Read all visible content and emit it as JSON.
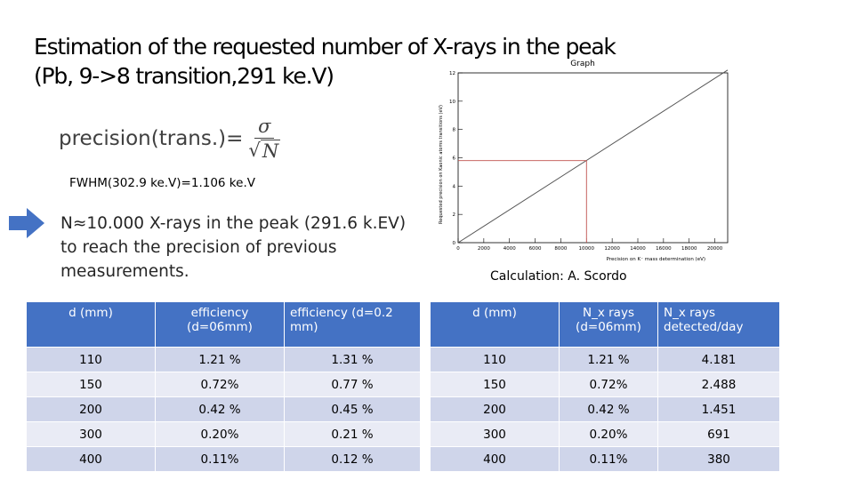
{
  "slide": {
    "title_line1": "Estimation of the requested number of X-rays in the peak",
    "title_line2": "(Pb, 9->8 transition,291 ke.V)",
    "formula": {
      "lhs": "precision(trans.)=",
      "numerator": "σ",
      "radical": "√",
      "denominator": "N"
    },
    "fwhm": "FWHM(302.9 ke.V)=1.106 ke.V",
    "result_line1": "N≈10.000 X-rays in the peak (291.6 k.EV)",
    "result_line2": "to reach the precision of previous",
    "result_line3": "measurements.",
    "credit": "Calculation: A. Scordo"
  },
  "chart_data": {
    "type": "line",
    "title": "Graph",
    "xlabel": "Precision on K⁻ mass determination (eV)",
    "ylabel": "Requested precision on Kaonic atoms transitions (eV)",
    "xlim": [
      0,
      21000
    ],
    "ylim": [
      0,
      12
    ],
    "x_ticks": [
      0,
      2000,
      4000,
      6000,
      8000,
      10000,
      12000,
      14000,
      16000,
      18000,
      20000
    ],
    "y_ticks": [
      0,
      2,
      4,
      6,
      8,
      10,
      12
    ],
    "series": [
      {
        "x": [
          0,
          21000
        ],
        "y": [
          0,
          12.2
        ]
      }
    ],
    "annotations": [
      {
        "type": "guide",
        "x": 10000,
        "y": 5.8
      }
    ],
    "line_color": "#555555",
    "guide_color": "#c0504d"
  },
  "table_left": {
    "headers": [
      "d (mm)",
      "efficiency (d=06mm)",
      "efficiency (d=0.2 mm)"
    ],
    "rows": [
      [
        "110",
        "1.21 %",
        "1.31 %"
      ],
      [
        "150",
        "0.72%",
        "0.77 %"
      ],
      [
        "200",
        "0.42 %",
        "0.45 %"
      ],
      [
        "300",
        "0.20%",
        "0.21 %"
      ],
      [
        "400",
        "0.11%",
        "0.12 %"
      ]
    ]
  },
  "table_right": {
    "headers": [
      "d (mm)",
      "N_x rays (d=06mm)",
      "N_x rays detected/day"
    ],
    "rows": [
      [
        "110",
        "1.21 %",
        "4.181"
      ],
      [
        "150",
        "0.72%",
        "2.488"
      ],
      [
        "200",
        "0.42 %",
        "1.451"
      ],
      [
        "300",
        "0.20%",
        "691"
      ],
      [
        "400",
        "0.11%",
        "380"
      ]
    ]
  },
  "colors": {
    "header_blue": "#4472c4",
    "row_odd": "#cfd5ea",
    "row_even": "#e9ebf5",
    "arrow_blue": "#4472c4"
  }
}
